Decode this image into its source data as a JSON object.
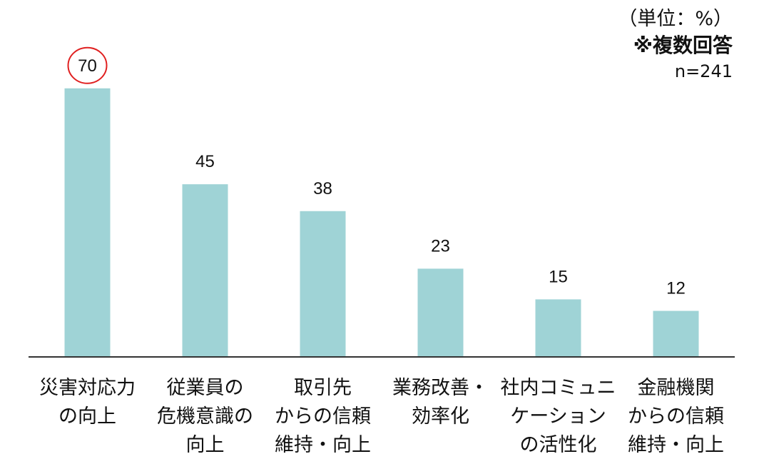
{
  "chart_data": {
    "type": "bar",
    "unit_note": "（単位：%）",
    "multi_note": "※複数回答",
    "n_note": "n=241",
    "categories": [
      [
        "災害対応力",
        "の向上"
      ],
      [
        "従業員の",
        "危機意識の",
        "向上"
      ],
      [
        "取引先",
        "からの信頼",
        "維持・向上"
      ],
      [
        "業務改善・",
        "効率化"
      ],
      [
        "社内コミュニ",
        "ケーション",
        "の活性化"
      ],
      [
        "金融機関",
        "からの信頼",
        "維持・向上"
      ]
    ],
    "values": [
      70,
      45,
      38,
      23,
      15,
      12
    ],
    "value_labels": [
      "70",
      "45",
      "38",
      "23",
      "15",
      "12"
    ],
    "highlight_index": 0,
    "ylim": [
      0,
      80
    ],
    "grid": false,
    "colors": {
      "bar": "#9fd3d6",
      "axis": "#333333",
      "highlight_circle": "#e02020",
      "text": "#111111"
    }
  }
}
